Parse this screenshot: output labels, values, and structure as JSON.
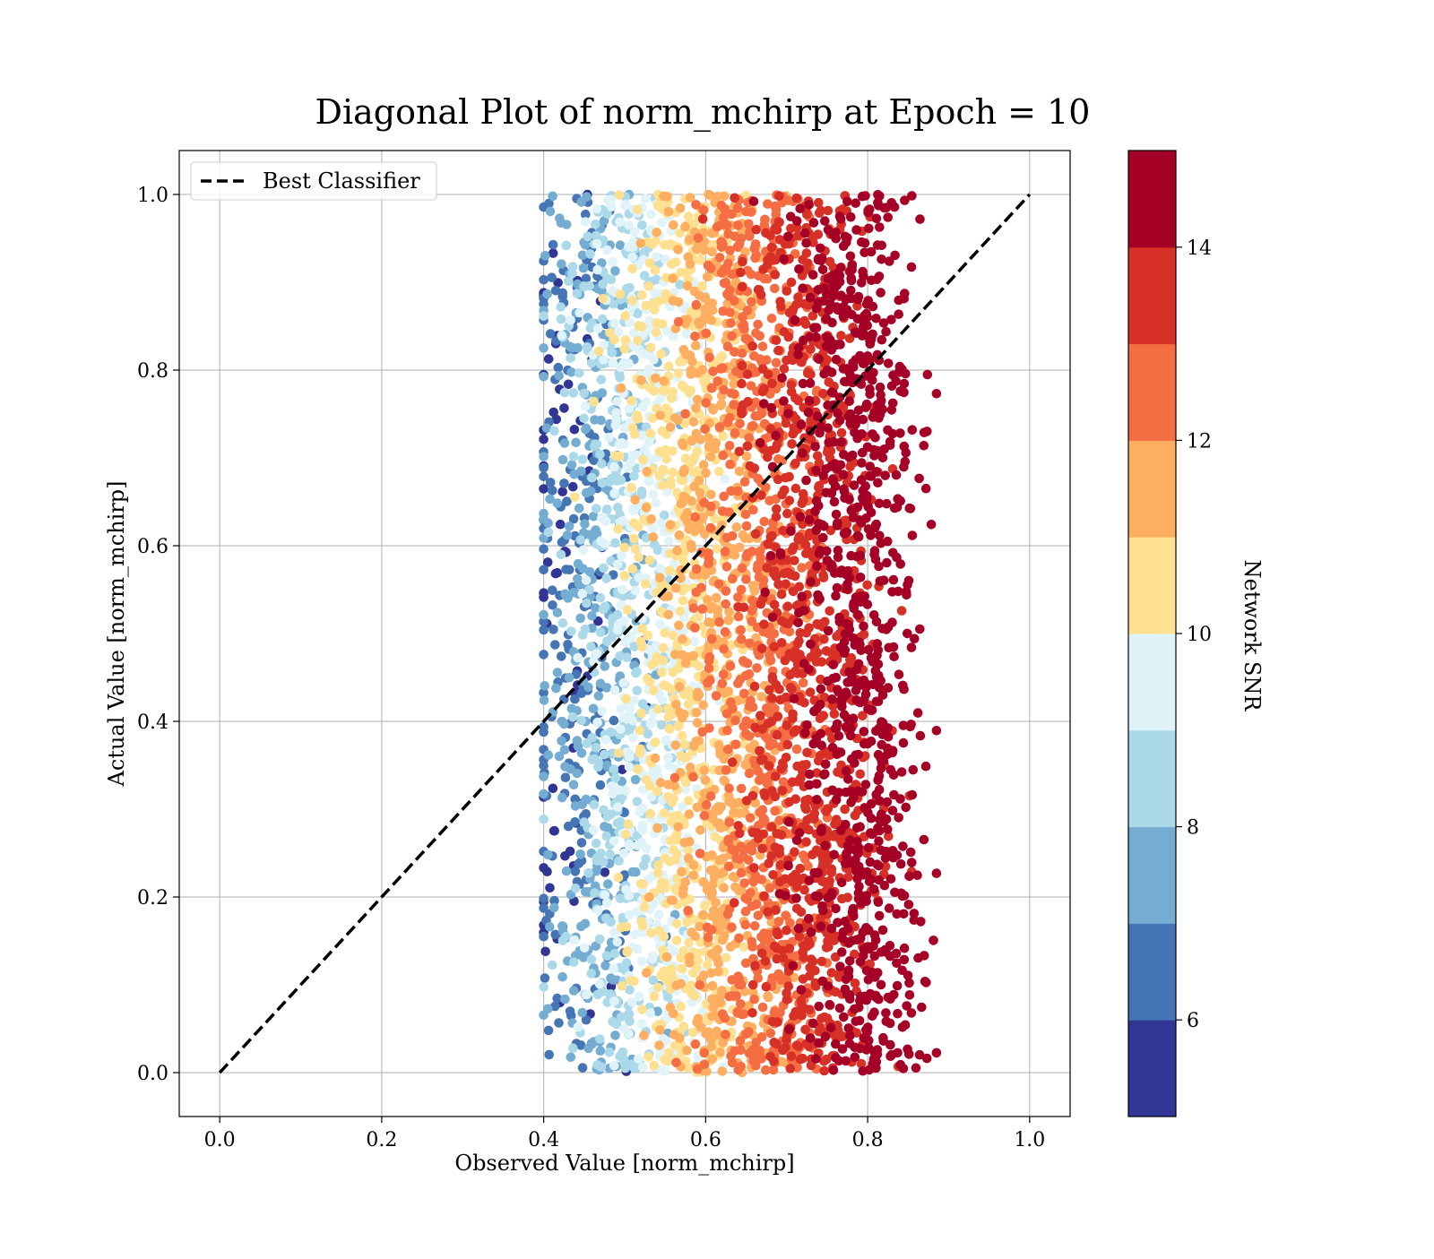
{
  "chart_data": {
    "type": "scatter",
    "title": "Diagonal Plot of norm_mchirp at Epoch = 10",
    "xlabel": "Observed Value [norm_mchirp]",
    "ylabel": "Actual Value [norm_mchirp]",
    "xlim": [
      -0.05,
      1.05
    ],
    "ylim": [
      -0.05,
      1.05
    ],
    "x_ticks": [
      0.0,
      0.2,
      0.4,
      0.6,
      0.8,
      1.0
    ],
    "y_ticks": [
      0.0,
      0.2,
      0.4,
      0.6,
      0.8,
      1.0
    ],
    "x_tick_labels": [
      "0.0",
      "0.2",
      "0.4",
      "0.6",
      "0.8",
      "1.0"
    ],
    "y_tick_labels": [
      "0.0",
      "0.2",
      "0.4",
      "0.6",
      "0.8",
      "1.0"
    ],
    "grid": true,
    "legend": {
      "placement": "upper-left",
      "entries": [
        {
          "label": "Best Classifier",
          "style": "dashed",
          "color": "#000000"
        }
      ]
    },
    "reference_line": {
      "name": "Best Classifier",
      "x": [
        0.0,
        1.0
      ],
      "y": [
        0.0,
        1.0
      ],
      "style": "dashed",
      "color": "#000000"
    },
    "scatter_summary": {
      "x_range": [
        0.39,
        0.89
      ],
      "y_range": [
        0.0,
        1.0
      ],
      "color_variable": "Network SNR",
      "trend": "Observed value increases with Network SNR; low-SNR points cluster near x≈0.42-0.50, high-SNR points fill x≈0.60-0.88"
    },
    "colorbar": {
      "label": "Network SNR",
      "min": 5.0,
      "max": 15.0,
      "ticks": [
        6,
        8,
        10,
        12,
        14
      ],
      "tick_labels": [
        "6",
        "8",
        "10",
        "12",
        "14"
      ],
      "bins": [
        5,
        6,
        7,
        8,
        9,
        10,
        11,
        12,
        13,
        14,
        15
      ],
      "colors": [
        "#313695",
        "#4575b4",
        "#74add1",
        "#abd9e9",
        "#e0f3f8",
        "#fee090",
        "#fdae61",
        "#f46d43",
        "#d73027",
        "#a50026"
      ]
    }
  }
}
